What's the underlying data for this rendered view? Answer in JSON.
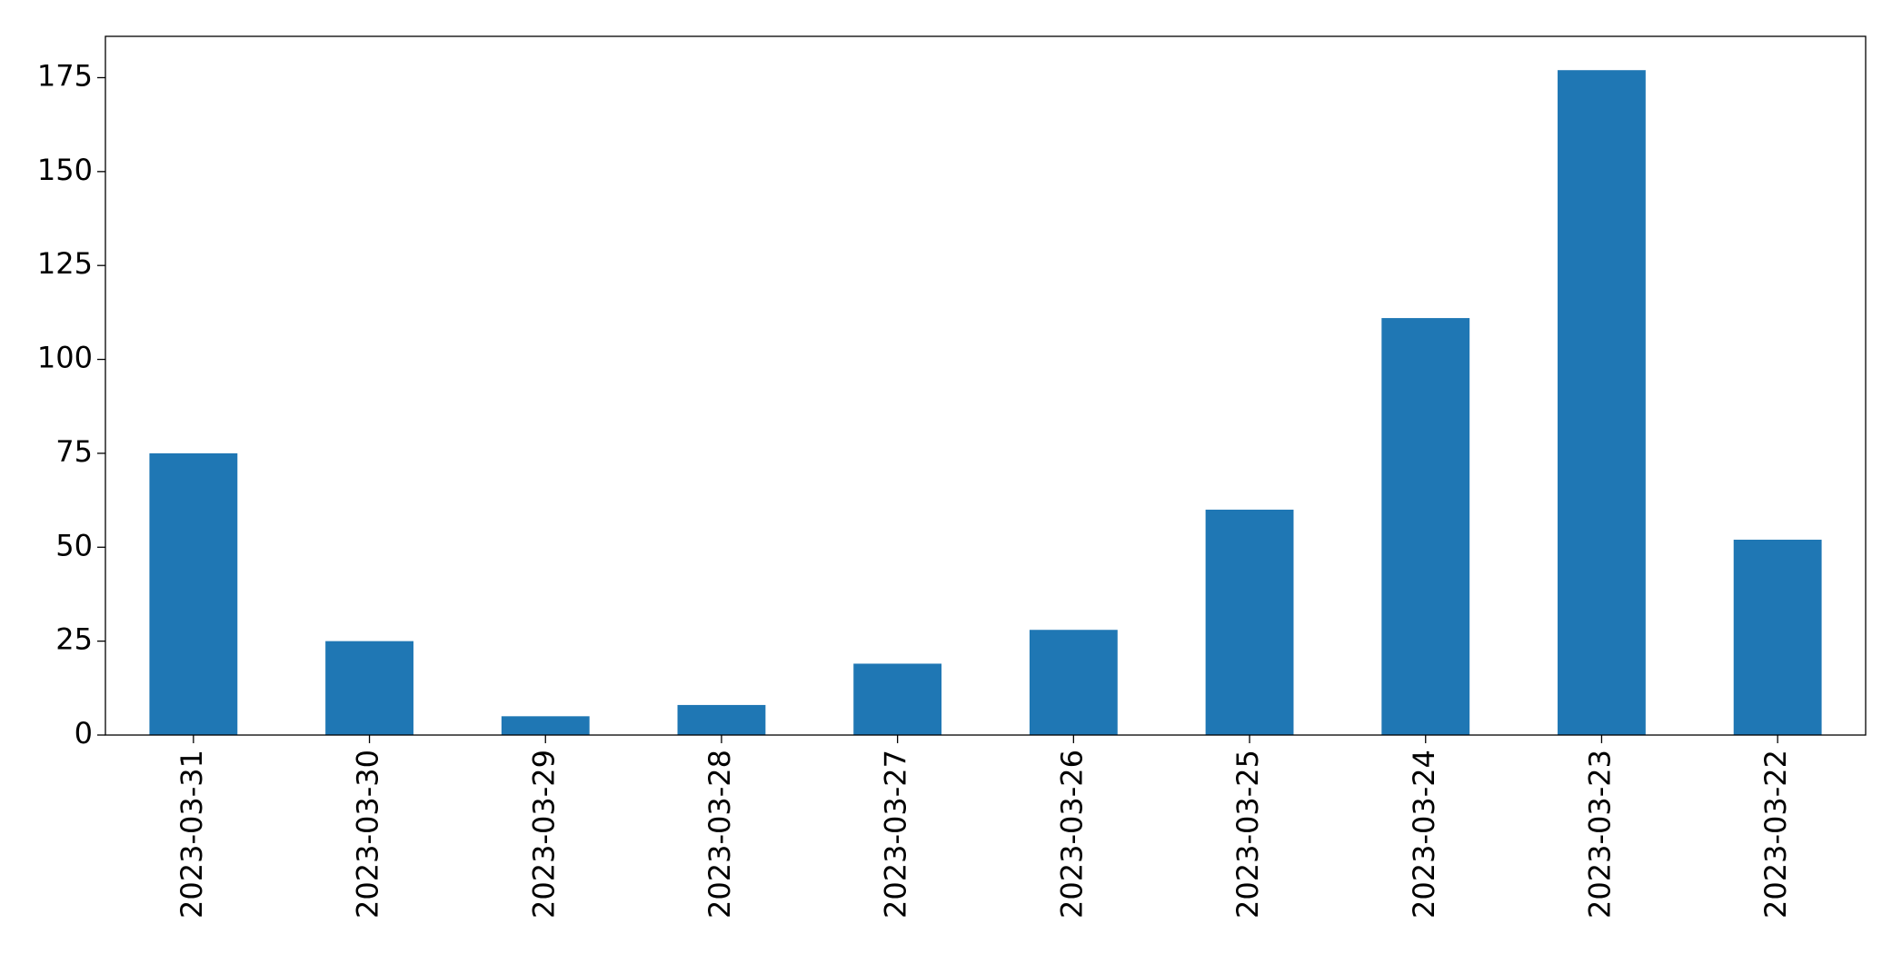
{
  "chart_data": {
    "type": "bar",
    "categories": [
      "2023-03-31",
      "2023-03-30",
      "2023-03-29",
      "2023-03-28",
      "2023-03-27",
      "2023-03-26",
      "2023-03-25",
      "2023-03-24",
      "2023-03-23",
      "2023-03-22"
    ],
    "values": [
      75,
      25,
      5,
      8,
      19,
      28,
      60,
      111,
      177,
      52
    ],
    "color": "#1f77b4",
    "ylim": [
      0,
      186
    ],
    "yticks": [
      0,
      25,
      50,
      75,
      100,
      125,
      150,
      175
    ],
    "grid": false
  }
}
